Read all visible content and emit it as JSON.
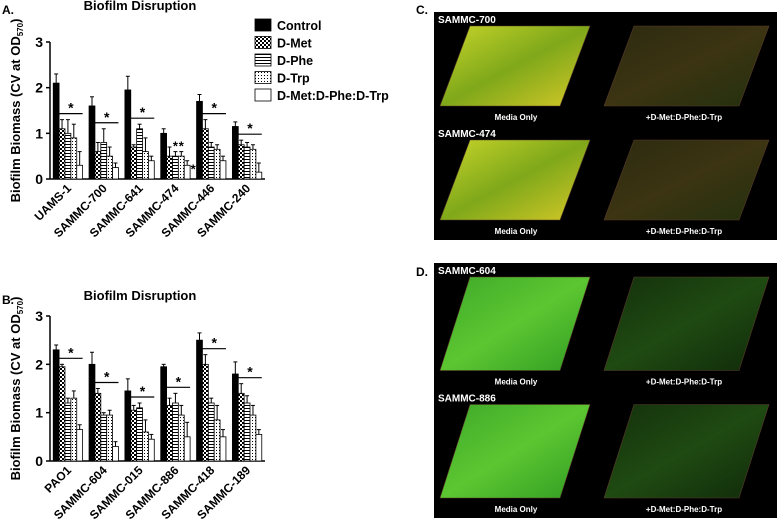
{
  "chart_data": [
    {
      "type": "bar",
      "panel_label": "A.",
      "title": "Biofilm Disruption",
      "ylabel": "Biofilm Biomass (CV at OD",
      "ylabel_sub": "570",
      "ylabel_end": ")",
      "categories": [
        "UAMS-1",
        "SAMMC-700",
        "SAMMC-641",
        "SAMMC-474",
        "SAMMC-446",
        "SAMMC-240"
      ],
      "ylim": [
        0,
        3
      ],
      "yticks": [
        0,
        1,
        2,
        3
      ],
      "legend": true,
      "series": [
        {
          "name": "Control",
          "pattern": "solid",
          "values": [
            2.1,
            1.6,
            1.95,
            1.0,
            1.7,
            1.15
          ],
          "errors": [
            0.2,
            0.2,
            0.3,
            0.1,
            0.15,
            0.1
          ]
        },
        {
          "name": "D-Met",
          "pattern": "checker",
          "values": [
            1.1,
            0.6,
            0.7,
            0.5,
            1.1,
            0.75
          ],
          "errors": [
            0.2,
            0.2,
            0.05,
            0.2,
            0.2,
            0.1
          ]
        },
        {
          "name": "D-Phe",
          "pattern": "hlines",
          "values": [
            1.0,
            0.8,
            1.1,
            0.5,
            0.7,
            0.7
          ],
          "errors": [
            0.3,
            0.3,
            0.1,
            0.1,
            0.1,
            0.1
          ]
        },
        {
          "name": "D-Trp",
          "pattern": "dots",
          "values": [
            0.9,
            0.5,
            0.6,
            0.5,
            0.65,
            0.65
          ],
          "errors": [
            0.3,
            0.2,
            0.3,
            0.1,
            0.1,
            0.1
          ]
        },
        {
          "name": "D-Met:D-Phe:D-Trp",
          "pattern": "none",
          "values": [
            0.3,
            0.25,
            0.4,
            0.3,
            0.4,
            0.15
          ],
          "errors": [
            0.3,
            0.1,
            0.1,
            0.1,
            0.1,
            0.2
          ]
        }
      ],
      "significance": [
        [
          "*"
        ],
        [
          "*"
        ],
        [
          "*"
        ],
        [
          "*",
          "*",
          "*"
        ],
        [
          "*"
        ],
        [
          "*"
        ]
      ]
    },
    {
      "type": "bar",
      "panel_label": "B.",
      "title": "Biofilm Disruption",
      "ylabel": "Biofilm Biomass (CV at OD",
      "ylabel_sub": "570",
      "ylabel_end": ")",
      "categories": [
        "PAO1",
        "SAMMC-604",
        "SAMMC-015",
        "SAMMC-886",
        "SAMMC-418",
        "SAMMC-189"
      ],
      "ylim": [
        0,
        3
      ],
      "yticks": [
        0,
        1,
        2,
        3
      ],
      "legend": false,
      "series": [
        {
          "pattern": "solid",
          "values": [
            2.3,
            2.0,
            1.45,
            1.95,
            2.5,
            1.8
          ],
          "errors": [
            0.1,
            0.25,
            0.25,
            0.05,
            0.15,
            0.25
          ]
        },
        {
          "pattern": "checker",
          "values": [
            1.95,
            1.4,
            1.05,
            1.15,
            2.0,
            1.4
          ],
          "errors": [
            0.05,
            0.1,
            0.1,
            0.15,
            0.2,
            0.2
          ]
        },
        {
          "pattern": "hlines",
          "values": [
            1.2,
            0.95,
            1.1,
            1.2,
            1.2,
            1.2
          ],
          "errors": [
            0.1,
            0.05,
            0.1,
            0.2,
            0.1,
            0.15
          ]
        },
        {
          "pattern": "dots",
          "values": [
            1.3,
            0.95,
            0.6,
            0.95,
            0.85,
            0.95
          ],
          "errors": [
            0.15,
            0.1,
            0.25,
            0.2,
            0.3,
            0.2
          ]
        },
        {
          "pattern": "none",
          "values": [
            0.65,
            0.3,
            0.45,
            0.5,
            0.5,
            0.55
          ],
          "errors": [
            0.1,
            0.1,
            0.1,
            0.3,
            0.15,
            0.1
          ]
        }
      ],
      "significance": [
        [
          "*"
        ],
        [
          "*"
        ],
        [
          "*"
        ],
        [
          "*"
        ],
        [
          "*"
        ],
        [
          "*"
        ]
      ]
    }
  ],
  "image_panels": [
    {
      "label": "C.",
      "rows": [
        {
          "title": "SAMMC-700",
          "left": "Media Only",
          "right": "+D-Met:D-Phe:D-Trp"
        },
        {
          "title": "SAMMC-474",
          "left": "Media Only",
          "right": "+D-Met:D-Phe:D-Trp"
        }
      ]
    },
    {
      "label": "D.",
      "rows": [
        {
          "title": "SAMMC-604",
          "left": "Media Only",
          "right": "+D-Met:D-Phe:D-Trp"
        },
        {
          "title": "SAMMC-886",
          "left": "Media Only",
          "right": "+D-Met:D-Phe:D-Trp"
        }
      ]
    }
  ]
}
